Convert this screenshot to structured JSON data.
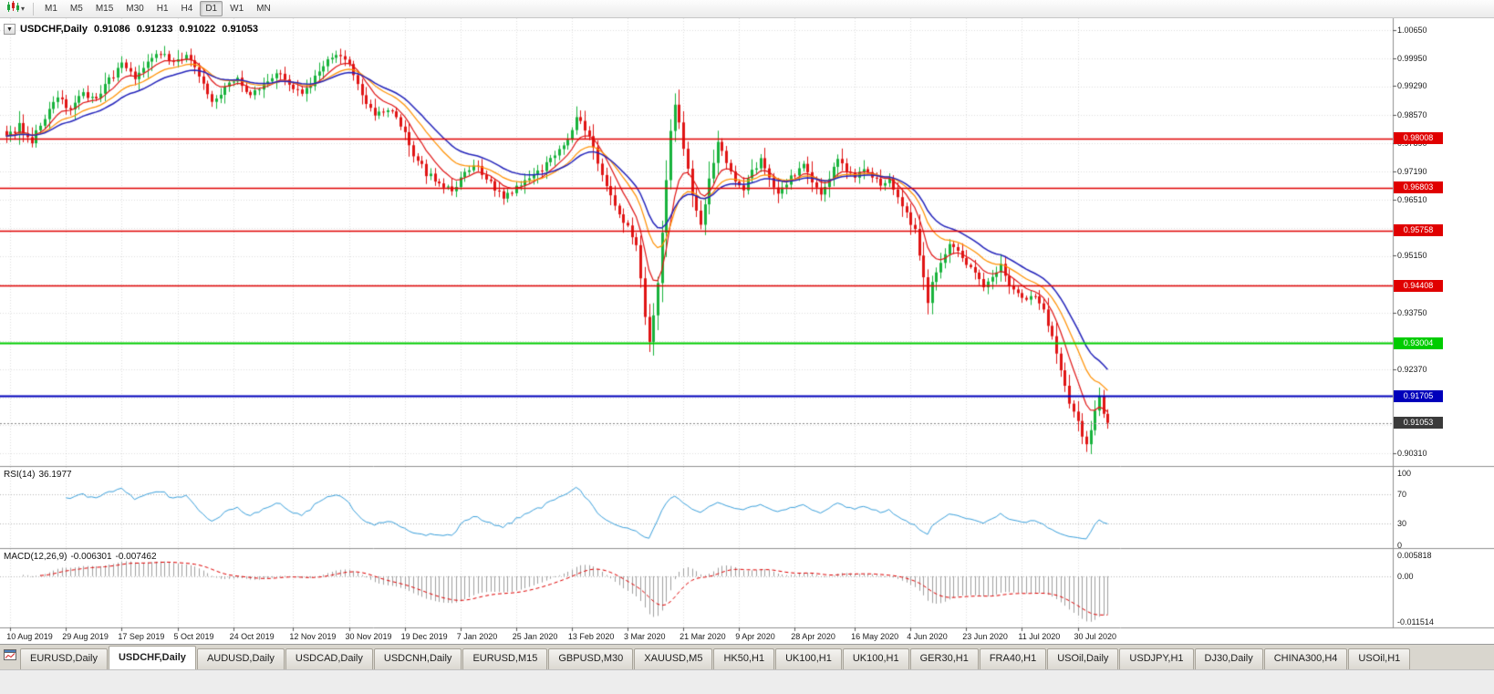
{
  "toolbar": {
    "chart_type_icon": "candlestick-chart-icon",
    "dropdown_icon": "chevron-down-icon",
    "timeframes": [
      "M1",
      "M5",
      "M15",
      "M30",
      "H1",
      "H4",
      "D1",
      "W1",
      "MN"
    ],
    "active_timeframe": "D1"
  },
  "chart": {
    "dropdown_glyph": "▼",
    "symbol_title": "USDCHF,Daily",
    "open": "0.91086",
    "high": "0.91233",
    "low": "0.91022",
    "close": "0.91053"
  },
  "chart_data": {
    "type": "candlestick",
    "symbol": "USDCHF",
    "timeframe": "Daily",
    "bars": 258,
    "ylim": [
      0.90004,
      1.0094
    ],
    "up_color": "#18b33c",
    "down_color": "#e01414",
    "price_axis_labels": [
      "1.00650",
      "0.99950",
      "0.99290",
      "0.98570",
      "0.97890",
      "0.97190",
      "0.96510",
      "0.95150",
      "0.93750",
      "0.92370",
      "0.90310"
    ],
    "x_labels": [
      "10 Aug 2019",
      "29 Aug 2019",
      "17 Sep 2019",
      "5 Oct 2019",
      "24 Oct 2019",
      "12 Nov 2019",
      "30 Nov 2019",
      "19 Dec 2019",
      "7 Jan 2020",
      "25 Jan 2020",
      "13 Feb 2020",
      "3 Mar 2020",
      "21 Mar 2020",
      "9 Apr 2020",
      "28 Apr 2020",
      "16 May 2020",
      "4 Jun 2020",
      "23 Jun 2020",
      "11 Jul 2020",
      "30 Jul 2020"
    ],
    "close_keyframes": [
      [
        0,
        0.98
      ],
      [
        3,
        0.9832
      ],
      [
        6,
        0.9795
      ],
      [
        9,
        0.985
      ],
      [
        12,
        0.9898
      ],
      [
        15,
        0.9872
      ],
      [
        18,
        0.9912
      ],
      [
        21,
        0.9892
      ],
      [
        24,
        0.9942
      ],
      [
        27,
        0.9978
      ],
      [
        30,
        0.9945
      ],
      [
        33,
        0.9988
      ],
      [
        36,
        1.0012
      ],
      [
        39,
        0.9988
      ],
      [
        42,
        1.0002
      ],
      [
        45,
        0.9952
      ],
      [
        48,
        0.9892
      ],
      [
        51,
        0.9926
      ],
      [
        54,
        0.9946
      ],
      [
        57,
        0.9906
      ],
      [
        60,
        0.9926
      ],
      [
        63,
        0.9966
      ],
      [
        66,
        0.9932
      ],
      [
        69,
        0.9906
      ],
      [
        72,
        0.9946
      ],
      [
        75,
        0.9986
      ],
      [
        78,
        1.0002
      ],
      [
        80,
        0.9976
      ],
      [
        83,
        0.9906
      ],
      [
        86,
        0.9856
      ],
      [
        89,
        0.9872
      ],
      [
        92,
        0.9832
      ],
      [
        95,
        0.9762
      ],
      [
        98,
        0.9716
      ],
      [
        101,
        0.9692
      ],
      [
        104,
        0.9672
      ],
      [
        107,
        0.9716
      ],
      [
        110,
        0.9732
      ],
      [
        113,
        0.9692
      ],
      [
        116,
        0.9652
      ],
      [
        119,
        0.9682
      ],
      [
        122,
        0.9702
      ],
      [
        125,
        0.9726
      ],
      [
        128,
        0.9762
      ],
      [
        131,
        0.9802
      ],
      [
        133,
        0.9846
      ],
      [
        135,
        0.9826
      ],
      [
        137,
        0.9772
      ],
      [
        139,
        0.9716
      ],
      [
        141,
        0.9662
      ],
      [
        143,
        0.9622
      ],
      [
        145,
        0.9582
      ],
      [
        147,
        0.9542
      ],
      [
        148,
        0.9462
      ],
      [
        149,
        0.9362
      ],
      [
        150,
        0.9302
      ],
      [
        151,
        0.9362
      ],
      [
        152,
        0.9442
      ],
      [
        153,
        0.9562
      ],
      [
        154,
        0.9702
      ],
      [
        155,
        0.9822
      ],
      [
        156,
        0.9882
      ],
      [
        157,
        0.9842
      ],
      [
        158,
        0.9782
      ],
      [
        160,
        0.9662
      ],
      [
        162,
        0.9592
      ],
      [
        164,
        0.9702
      ],
      [
        166,
        0.9792
      ],
      [
        168,
        0.9742
      ],
      [
        170,
        0.9702
      ],
      [
        172,
        0.9676
      ],
      [
        174,
        0.9722
      ],
      [
        176,
        0.9746
      ],
      [
        178,
        0.9706
      ],
      [
        180,
        0.9666
      ],
      [
        182,
        0.9692
      ],
      [
        184,
        0.9716
      ],
      [
        186,
        0.9736
      ],
      [
        188,
        0.9692
      ],
      [
        190,
        0.9666
      ],
      [
        192,
        0.9706
      ],
      [
        194,
        0.9746
      ],
      [
        196,
        0.9722
      ],
      [
        198,
        0.9706
      ],
      [
        200,
        0.9726
      ],
      [
        202,
        0.9706
      ],
      [
        204,
        0.9682
      ],
      [
        206,
        0.9702
      ],
      [
        208,
        0.9662
      ],
      [
        210,
        0.9616
      ],
      [
        212,
        0.9572
      ],
      [
        214,
        0.9462
      ],
      [
        215,
        0.9402
      ],
      [
        216,
        0.9442
      ],
      [
        218,
        0.9502
      ],
      [
        220,
        0.9546
      ],
      [
        222,
        0.9522
      ],
      [
        224,
        0.9492
      ],
      [
        226,
        0.9466
      ],
      [
        228,
        0.9442
      ],
      [
        230,
        0.9462
      ],
      [
        232,
        0.9486
      ],
      [
        234,
        0.9446
      ],
      [
        236,
        0.9422
      ],
      [
        238,
        0.9402
      ],
      [
        240,
        0.9416
      ],
      [
        242,
        0.9382
      ],
      [
        244,
        0.9312
      ],
      [
        246,
        0.9232
      ],
      [
        248,
        0.9156
      ],
      [
        250,
        0.9102
      ],
      [
        251,
        0.9076
      ],
      [
        252,
        0.9046
      ],
      [
        253,
        0.9086
      ],
      [
        254,
        0.9132
      ],
      [
        255,
        0.9166
      ],
      [
        256,
        0.9122
      ],
      [
        257,
        0.91053
      ]
    ],
    "horizontal_lines": [
      {
        "value": 0.98008,
        "label": "0.98008",
        "color": "#e00000",
        "width": 1.4
      },
      {
        "value": 0.96803,
        "label": "0.96803",
        "color": "#e00000",
        "width": 1.4
      },
      {
        "value": 0.95758,
        "label": "0.95758",
        "color": "#e00000",
        "width": 1.4
      },
      {
        "value": 0.94408,
        "label": "0.94408",
        "color": "#e00000",
        "width": 1.4
      },
      {
        "value": 0.93004,
        "label": "0.93004",
        "color": "#00cc00",
        "width": 2
      },
      {
        "value": 0.91705,
        "label": "0.91705",
        "color": "#0000bb",
        "width": 2
      }
    ],
    "current_price": {
      "value": 0.91053,
      "label": "0.91053",
      "badge_color": "#3a3a3a"
    },
    "indicators": {
      "moving_averages": [
        {
          "name": "MA fast",
          "period": 8,
          "method": "ema",
          "color": "#e01414"
        },
        {
          "name": "MA mid",
          "period": 16,
          "method": "ema",
          "color": "#ff9000"
        },
        {
          "name": "MA slow",
          "period": 24,
          "method": "ema",
          "color": "#2424bb"
        }
      ],
      "rsi": {
        "label": "RSI(14)",
        "value": "36.1977",
        "period": 14,
        "levels": [
          70,
          30
        ],
        "range": [
          0,
          100
        ],
        "axis_labels": [
          "100",
          "70",
          "30",
          "0"
        ],
        "color": "#3aa0dc"
      },
      "macd": {
        "label": "MACD(12,26,9)",
        "macd_value": "-0.006301",
        "signal_value": "-0.007462",
        "fast": 12,
        "slow": 26,
        "signal": 9,
        "range": [
          -0.011514,
          0.005818
        ],
        "axis_labels": [
          "0.005818",
          "0.00",
          "-0.011514"
        ],
        "histogram_color": "#a0a0a0",
        "signal_color": "#e00000"
      }
    }
  },
  "tabbar": {
    "window_icon": "chart-window-icon",
    "tabs": [
      {
        "label": "EURUSD,Daily",
        "active": false
      },
      {
        "label": "USDCHF,Daily",
        "active": true
      },
      {
        "label": "AUDUSD,Daily",
        "active": false
      },
      {
        "label": "USDCAD,Daily",
        "active": false
      },
      {
        "label": "USDCNH,Daily",
        "active": false
      },
      {
        "label": "EURUSD,M15",
        "active": false
      },
      {
        "label": "GBPUSD,M30",
        "active": false
      },
      {
        "label": "XAUUSD,M5",
        "active": false
      },
      {
        "label": "HK50,H1",
        "active": false
      },
      {
        "label": "UK100,H1",
        "active": false
      },
      {
        "label": "UK100,H1",
        "active": false
      },
      {
        "label": "GER30,H1",
        "active": false
      },
      {
        "label": "FRA40,H1",
        "active": false
      },
      {
        "label": "USOil,Daily",
        "active": false
      },
      {
        "label": "USDJPY,H1",
        "active": false
      },
      {
        "label": "DJ30,Daily",
        "active": false
      },
      {
        "label": "CHINA300,H4",
        "active": false
      },
      {
        "label": "USOil,H1",
        "active": false
      }
    ]
  }
}
